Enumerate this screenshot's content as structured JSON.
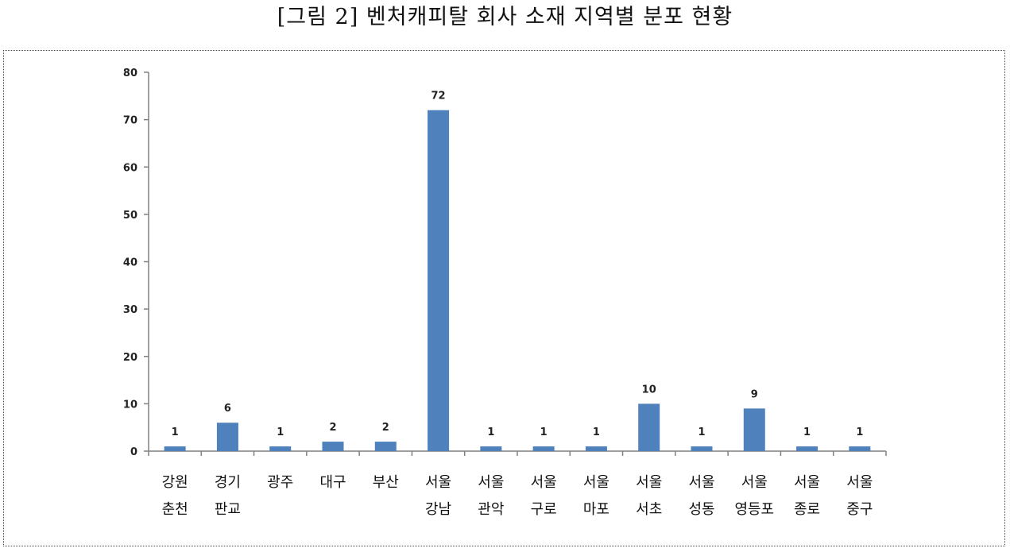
{
  "figure_title": "[그림 2] 벤처캐피탈 회사 소재 지역별 분포 현황",
  "colors": {
    "bar": "#4F81BD",
    "axis": "#808080",
    "text": "#222222"
  },
  "chart_data": {
    "type": "bar",
    "title": "",
    "xlabel": "",
    "ylabel": "",
    "ylim": [
      0,
      80
    ],
    "yticks": [
      0,
      10,
      20,
      30,
      40,
      50,
      60,
      70,
      80
    ],
    "grid": false,
    "legend": "none",
    "categories": [
      [
        "강원",
        "춘천"
      ],
      [
        "경기",
        "판교"
      ],
      [
        "광주"
      ],
      [
        "대구"
      ],
      [
        "부산"
      ],
      [
        "서울",
        "강남"
      ],
      [
        "서울",
        "관악"
      ],
      [
        "서울",
        "구로"
      ],
      [
        "서울",
        "마포"
      ],
      [
        "서울",
        "서초"
      ],
      [
        "서울",
        "성동"
      ],
      [
        "서울",
        "영등포"
      ],
      [
        "서울",
        "종로"
      ],
      [
        "서울",
        "중구"
      ]
    ],
    "values": [
      1,
      6,
      1,
      2,
      2,
      72,
      1,
      1,
      1,
      10,
      1,
      9,
      1,
      1
    ],
    "data_labels": [
      "1",
      "6",
      "1",
      "2",
      "2",
      "72",
      "1",
      "1",
      "1",
      "10",
      "1",
      "9",
      "1",
      "1"
    ]
  }
}
